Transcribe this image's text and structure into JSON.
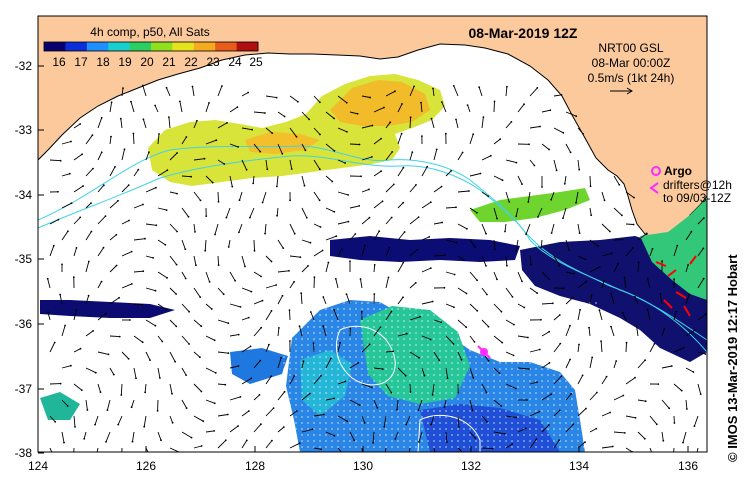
{
  "map": {
    "title": "08-Mar-2019 12Z",
    "colorbar": {
      "label": "4h comp, p50, All Sats",
      "ticks": [
        "16",
        "17",
        "18",
        "19",
        "20",
        "21",
        "22",
        "23",
        "24",
        "25"
      ],
      "colors": [
        "#08006e",
        "#0a2fd8",
        "#1f8fff",
        "#18cfd0",
        "#2ccf63",
        "#8fe01e",
        "#e6e31c",
        "#f4ab1f",
        "#e85b1a",
        "#b00f12"
      ]
    },
    "current_legend": {
      "line1": "NRT00 GSL",
      "line2": "08-Mar 00:00Z",
      "line3": "0.5m/s (1kt 24h)"
    },
    "argo_label": "Argo",
    "drifters_line1": "drifters@12h",
    "drifters_line2": "to 09/03-12Z",
    "credit": "© IMOS 13-Mar-2019 12:17 Hobart",
    "y_ticks": [
      "-32",
      "-33",
      "-34",
      "-35",
      "-36",
      "-37",
      "-38"
    ],
    "x_ticks": [
      "124",
      "126",
      "128",
      "130",
      "132",
      "134",
      "136"
    ],
    "colors": {
      "land": "#fbc99b",
      "coast": "#000000",
      "isobath": "#3fd3e8",
      "argo": "#ff2bff",
      "drifter": "#ff0000"
    }
  }
}
